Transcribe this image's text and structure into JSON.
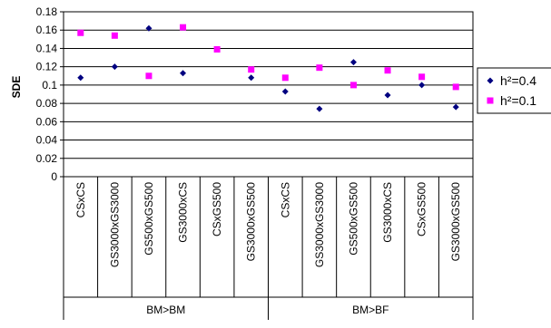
{
  "chart_data": {
    "type": "scatter",
    "title": "",
    "xlabel": "",
    "ylabel": "SDE",
    "ylim": [
      0,
      0.18
    ],
    "yticks": [
      0,
      0.02,
      0.04,
      0.06,
      0.08,
      0.1,
      0.12,
      0.14,
      0.16,
      0.18
    ],
    "ytick_labels": [
      "0",
      "0.02",
      "0.04",
      "0.06",
      "0.08",
      "0.1",
      "0.12",
      "0.14",
      "0.16",
      "0.18"
    ],
    "categories": [
      "CSxCS",
      "GS3000xGS3000",
      "GS500xGS500",
      "GS3000xCS",
      "CSxGS500",
      "GS3000xGS500",
      "CSxCS",
      "GS3000xGS3000",
      "GS500xGS500",
      "GS3000xCS",
      "CSxGS500",
      "GS3000xGS500"
    ],
    "groups": [
      {
        "label": "BM>BM",
        "start": 0,
        "end": 5
      },
      {
        "label": "BM>BF",
        "start": 6,
        "end": 11
      }
    ],
    "grid": true,
    "legend_position": "right",
    "series": [
      {
        "name": "h²=0.4",
        "marker": "diamond",
        "color": "#000080",
        "values": [
          0.108,
          0.12,
          0.162,
          0.113,
          null,
          0.108,
          0.093,
          0.074,
          0.125,
          0.089,
          0.1,
          0.076
        ]
      },
      {
        "name": "h²=0.1",
        "marker": "square",
        "color": "#ff00ff",
        "values": [
          0.157,
          0.154,
          0.11,
          0.163,
          0.139,
          0.117,
          0.108,
          0.119,
          0.1,
          0.116,
          0.109,
          0.098
        ]
      }
    ]
  }
}
